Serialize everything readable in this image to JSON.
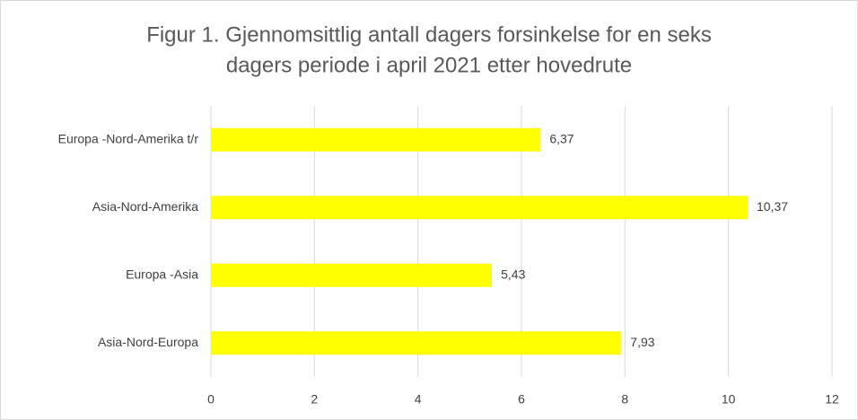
{
  "chart_data": {
    "type": "bar",
    "orientation": "horizontal",
    "title": [
      "Figur 1. Gjennomsittlig antall dagers forsinkelse for en seks",
      "dagers periode i april 2021 etter  hovedrute"
    ],
    "categories": [
      "Europa -Nord-Amerika t/r",
      "Asia-Nord-Amerika",
      "Europa -Asia",
      "Asia-Nord-Europa"
    ],
    "values": [
      6.37,
      10.37,
      5.43,
      7.93
    ],
    "value_labels": [
      "6,37",
      "10,37",
      "5,43",
      "7,93"
    ],
    "color": "#ffff00",
    "xlim": [
      0,
      12
    ],
    "xticks": [
      0,
      2,
      4,
      6,
      8,
      10,
      12
    ],
    "grid": true
  }
}
